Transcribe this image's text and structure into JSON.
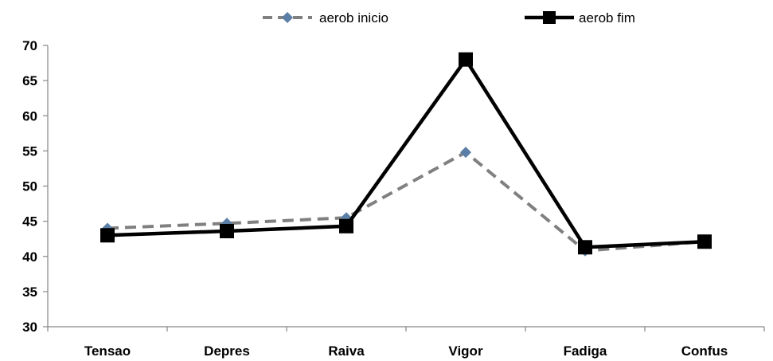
{
  "chart_data": {
    "type": "line",
    "categories": [
      "Tensao",
      "Depres",
      "Raiva",
      "Vigor",
      "Fadiga",
      "Confus"
    ],
    "series": [
      {
        "name": "aerob inicio",
        "values": [
          44.0,
          44.7,
          45.5,
          54.8,
          40.8,
          42.1
        ],
        "color": "#808080",
        "marker_color": "#5b7fa6",
        "line_style": "dashed",
        "marker": "diamond"
      },
      {
        "name": "aerob fim",
        "values": [
          43.0,
          43.6,
          44.3,
          68.0,
          41.3,
          42.1
        ],
        "color": "#000000",
        "marker_color": "#000000",
        "line_style": "solid",
        "marker": "square"
      }
    ],
    "ylim": [
      30,
      70
    ],
    "yticks": [
      30,
      35,
      40,
      45,
      50,
      55,
      60,
      65,
      70
    ],
    "grid": false,
    "legend_position": "top",
    "title": "",
    "xlabel": "",
    "ylabel": ""
  }
}
